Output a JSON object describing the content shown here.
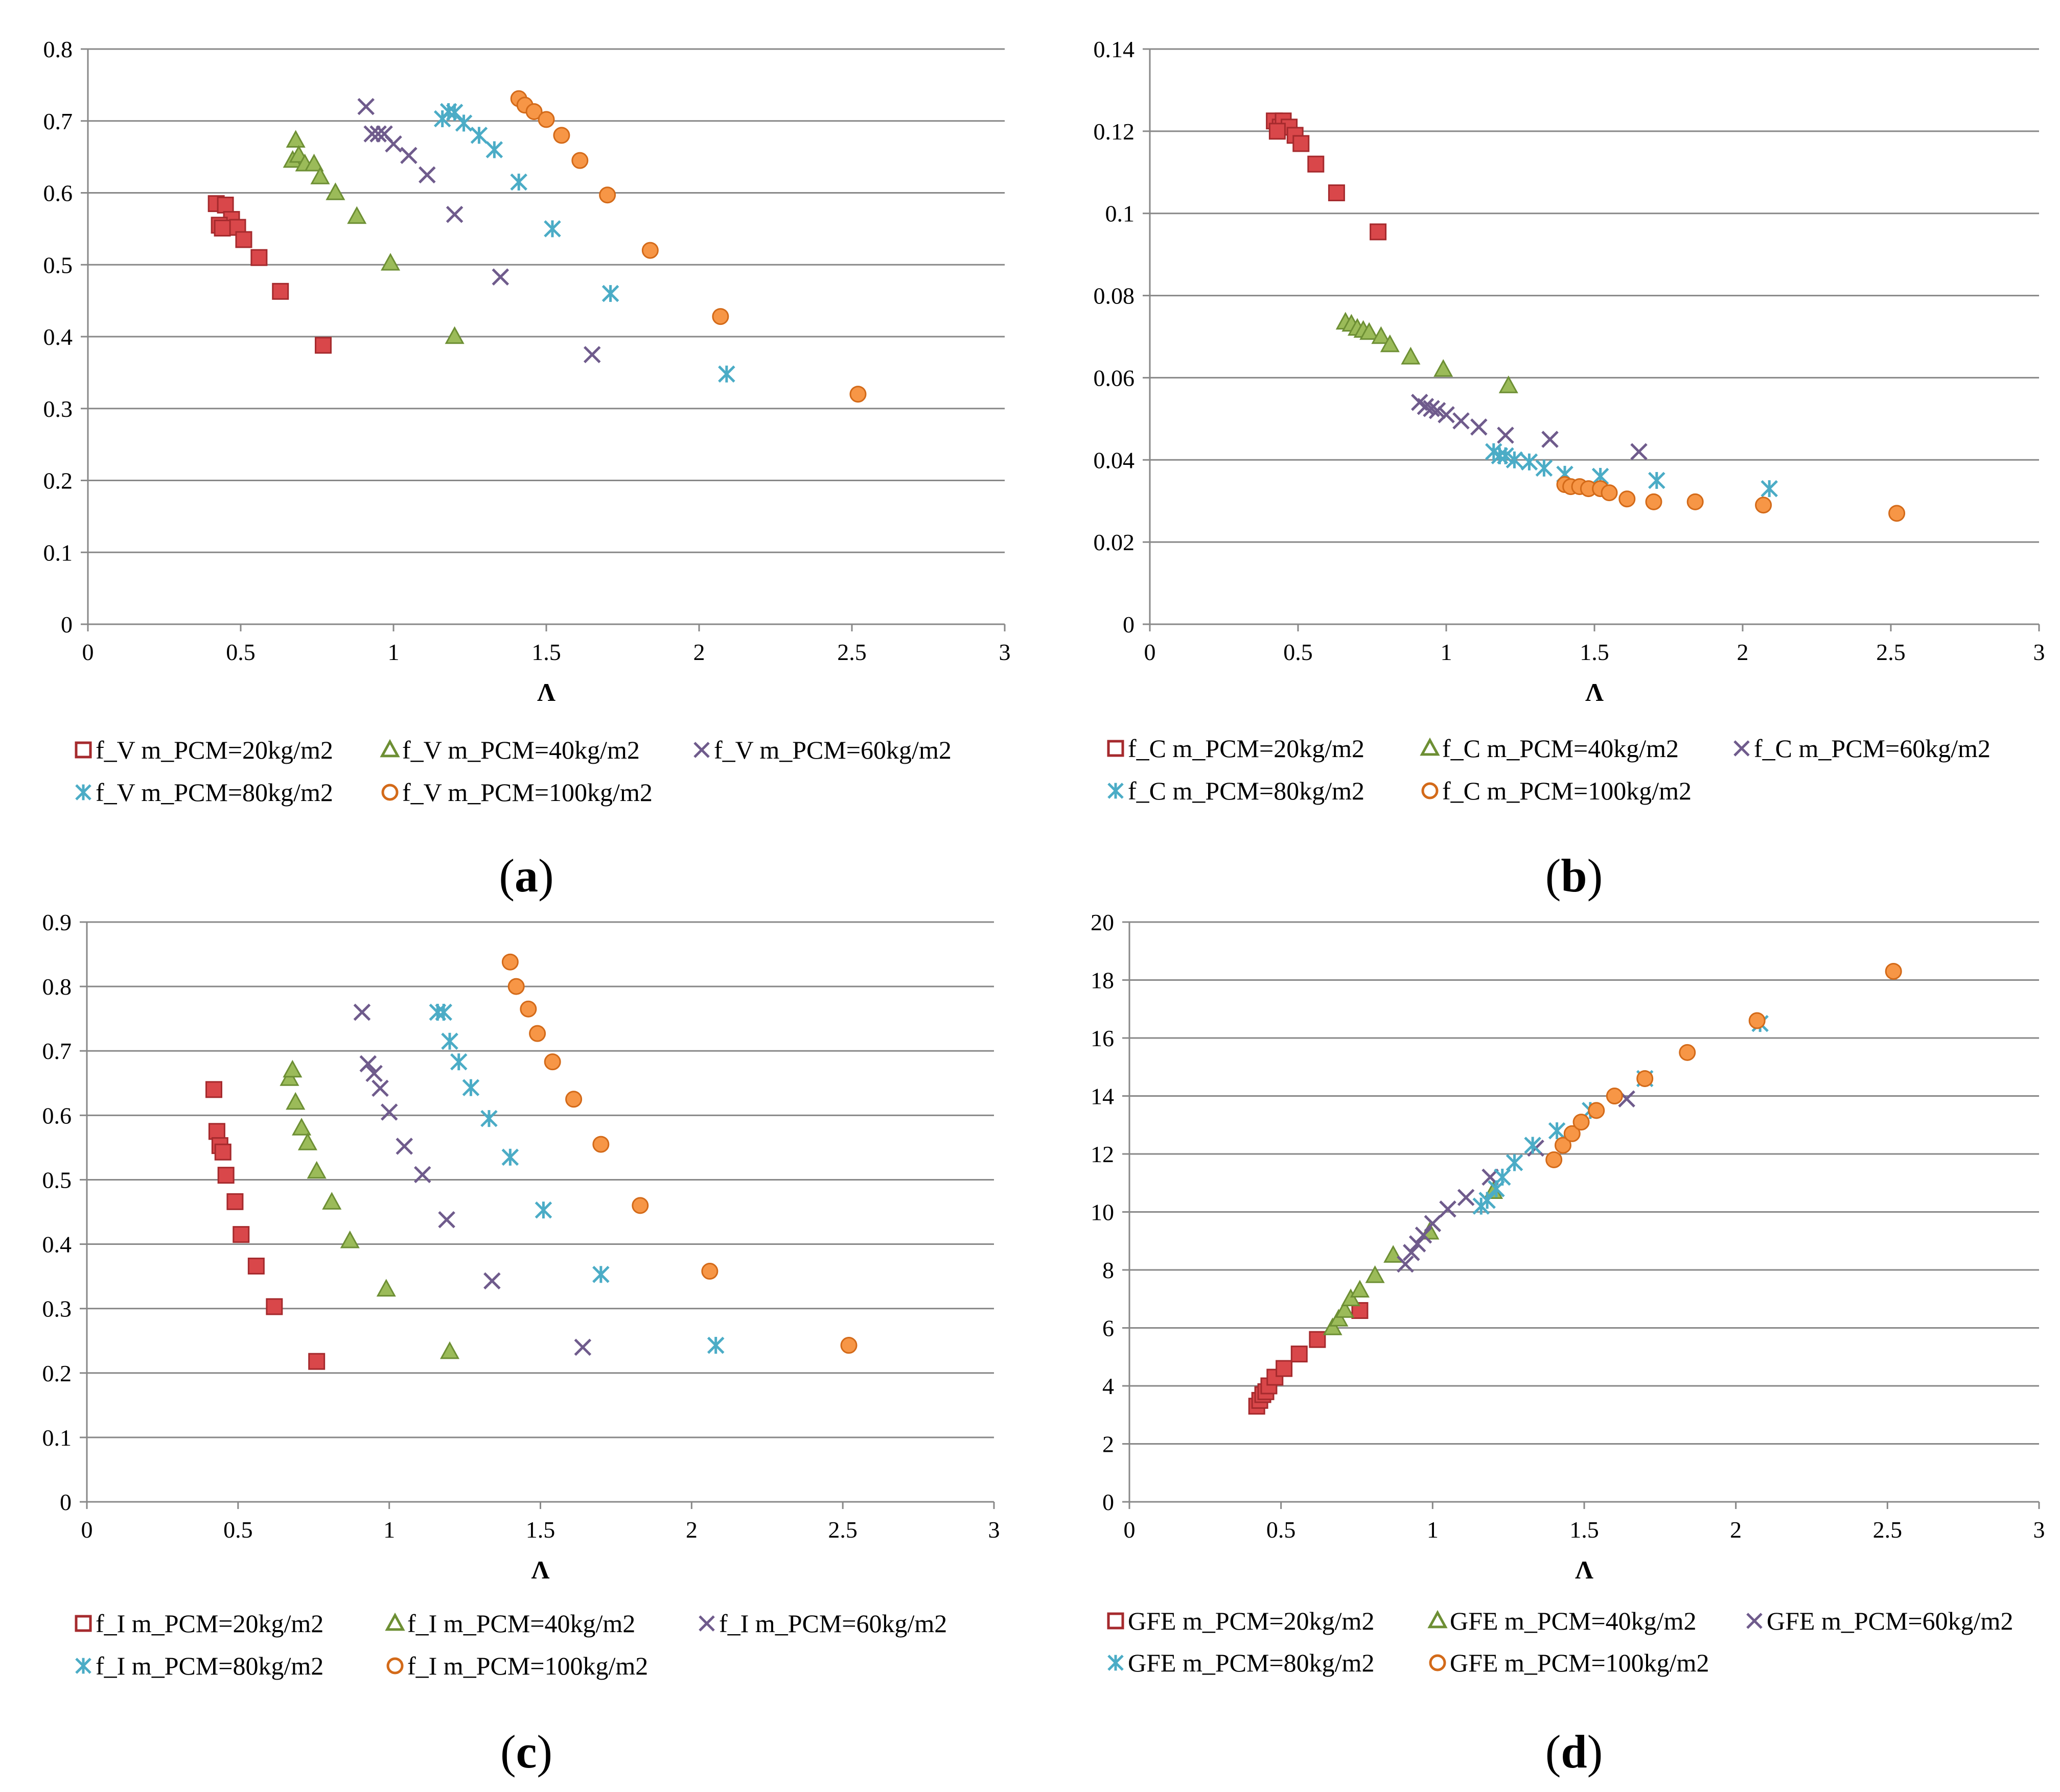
{
  "colors": {
    "red_fill": "#d9474a",
    "red_stroke": "#a52a2d",
    "green_fill": "#9bbb59",
    "green_stroke": "#6d8f34",
    "purple": "#6f5b8c",
    "teal": "#4bacc6",
    "orange_fill": "#f79646",
    "orange_stroke": "#d36a19",
    "grid": "#888888",
    "axis": "#888888"
  },
  "chart_data": [
    {
      "id": "a",
      "type": "scatter",
      "panel_label": {
        "open": "(",
        "letter": "a",
        "close": ")"
      },
      "xlabel": "Λ",
      "xlim": [
        0,
        3
      ],
      "ylim": [
        0,
        0.8
      ],
      "xticks": [
        "0",
        "0.5",
        "1",
        "1.5",
        "2",
        "2.5",
        "3"
      ],
      "yticks": [
        "0",
        "0.1",
        "0.2",
        "0.3",
        "0.4",
        "0.5",
        "0.6",
        "0.7",
        "0.8"
      ],
      "series": [
        {
          "name": "f_V m_PCM=20kg/m2",
          "marker": "square",
          "color": "red",
          "x": [
            0.42,
            0.45,
            0.47,
            0.49,
            0.51,
            0.56,
            0.63,
            0.77,
            0.43,
            0.44
          ],
          "y": [
            0.585,
            0.583,
            0.563,
            0.552,
            0.535,
            0.51,
            0.463,
            0.388,
            0.555,
            0.551
          ]
        },
        {
          "name": "f_V m_PCM=40kg/m2",
          "marker": "triangle",
          "color": "green",
          "x": [
            0.67,
            0.68,
            0.69,
            0.71,
            0.74,
            0.76,
            0.81,
            0.88,
            0.99,
            1.2
          ],
          "y": [
            0.645,
            0.673,
            0.652,
            0.64,
            0.64,
            0.622,
            0.6,
            0.567,
            0.502,
            0.4
          ]
        },
        {
          "name": "f_V m_PCM=60kg/m2",
          "marker": "x",
          "color": "purple",
          "x": [
            0.91,
            0.93,
            0.95,
            0.97,
            1.0,
            1.05,
            1.11,
            1.2,
            1.35,
            1.65
          ],
          "y": [
            0.72,
            0.682,
            0.682,
            0.682,
            0.668,
            0.652,
            0.625,
            0.57,
            0.483,
            0.375
          ]
        },
        {
          "name": "f_V m_PCM=80kg/m2",
          "marker": "asterisk",
          "color": "teal",
          "x": [
            1.16,
            1.18,
            1.2,
            1.23,
            1.28,
            1.33,
            1.41,
            1.52,
            1.71,
            2.09
          ],
          "y": [
            0.703,
            0.713,
            0.712,
            0.697,
            0.68,
            0.66,
            0.615,
            0.55,
            0.46,
            0.348
          ]
        },
        {
          "name": "f_V m_PCM=100kg/m2",
          "marker": "circle",
          "color": "orange",
          "x": [
            1.41,
            1.43,
            1.46,
            1.5,
            1.55,
            1.61,
            1.7,
            1.84,
            2.07,
            2.52
          ],
          "y": [
            0.731,
            0.722,
            0.713,
            0.702,
            0.68,
            0.645,
            0.597,
            0.52,
            0.428,
            0.32
          ]
        }
      ]
    },
    {
      "id": "b",
      "type": "scatter",
      "panel_label": {
        "open": "(",
        "letter": "b",
        "close": ")"
      },
      "xlabel": "Λ",
      "xlim": [
        0,
        3
      ],
      "ylim": [
        0,
        0.14
      ],
      "xticks": [
        "0",
        "0.5",
        "1",
        "1.5",
        "2",
        "2.5",
        "3"
      ],
      "yticks": [
        "0",
        "0.02",
        "0.04",
        "0.06",
        "0.08",
        "0.1",
        "0.12",
        "0.14"
      ],
      "series": [
        {
          "name": "f_C m_PCM=20kg/m2",
          "marker": "square",
          "color": "red",
          "x": [
            0.42,
            0.44,
            0.45,
            0.47,
            0.49,
            0.51,
            0.56,
            0.63,
            0.77,
            0.43
          ],
          "y": [
            0.1225,
            0.121,
            0.1225,
            0.121,
            0.119,
            0.117,
            0.112,
            0.105,
            0.0955,
            0.12
          ]
        },
        {
          "name": "f_C m_PCM=40kg/m2",
          "marker": "triangle",
          "color": "green",
          "x": [
            0.66,
            0.68,
            0.7,
            0.72,
            0.74,
            0.78,
            0.81,
            0.88,
            0.99,
            1.21
          ],
          "y": [
            0.0735,
            0.073,
            0.072,
            0.0715,
            0.071,
            0.07,
            0.068,
            0.065,
            0.062,
            0.058
          ]
        },
        {
          "name": "f_C m_PCM=60kg/m2",
          "marker": "x",
          "color": "purple",
          "x": [
            0.91,
            0.93,
            0.95,
            0.97,
            1.0,
            1.05,
            1.11,
            1.2,
            1.35,
            1.65
          ],
          "y": [
            0.054,
            0.053,
            0.0525,
            0.052,
            0.051,
            0.0495,
            0.048,
            0.046,
            0.045,
            0.042
          ]
        },
        {
          "name": "f_C m_PCM=80kg/m2",
          "marker": "asterisk",
          "color": "teal",
          "x": [
            1.16,
            1.18,
            1.2,
            1.23,
            1.28,
            1.33,
            1.4,
            1.52,
            1.71,
            2.09
          ],
          "y": [
            0.042,
            0.041,
            0.041,
            0.04,
            0.0395,
            0.038,
            0.0365,
            0.036,
            0.035,
            0.033
          ]
        },
        {
          "name": "f_C m_PCM=100kg/m2",
          "marker": "circle",
          "color": "orange",
          "x": [
            1.4,
            1.42,
            1.45,
            1.48,
            1.52,
            1.55,
            1.61,
            1.7,
            1.84,
            2.07,
            2.52
          ],
          "y": [
            0.034,
            0.0335,
            0.0335,
            0.033,
            0.033,
            0.032,
            0.0305,
            0.0298,
            0.0298,
            0.029,
            0.027
          ]
        }
      ]
    },
    {
      "id": "c",
      "type": "scatter",
      "panel_label": {
        "open": "(",
        "letter": "c",
        "close": ")"
      },
      "xlabel": "Λ",
      "xlim": [
        0,
        3
      ],
      "ylim": [
        0,
        0.9
      ],
      "xticks": [
        "0",
        "0.5",
        "1",
        "1.5",
        "2",
        "2.5",
        "3"
      ],
      "yticks": [
        "0",
        "0.1",
        "0.2",
        "0.3",
        "0.4",
        "0.5",
        "0.6",
        "0.7",
        "0.8",
        "0.9"
      ],
      "series": [
        {
          "name": "f_I m_PCM=20kg/m2",
          "marker": "square",
          "color": "red",
          "x": [
            0.42,
            0.43,
            0.44,
            0.45,
            0.46,
            0.49,
            0.51,
            0.56,
            0.62,
            0.76
          ],
          "y": [
            0.64,
            0.575,
            0.553,
            0.543,
            0.507,
            0.466,
            0.415,
            0.366,
            0.303,
            0.218
          ]
        },
        {
          "name": "f_I m_PCM=40kg/m2",
          "marker": "triangle",
          "color": "green",
          "x": [
            0.67,
            0.68,
            0.69,
            0.71,
            0.73,
            0.76,
            0.81,
            0.87,
            0.99,
            1.2
          ],
          "y": [
            0.657,
            0.67,
            0.62,
            0.58,
            0.557,
            0.513,
            0.465,
            0.405,
            0.33,
            0.233
          ]
        },
        {
          "name": "f_I m_PCM=60kg/m2",
          "marker": "x",
          "color": "purple",
          "x": [
            0.91,
            0.93,
            0.95,
            0.97,
            1.0,
            1.05,
            1.11,
            1.19,
            1.34,
            1.64
          ],
          "y": [
            0.76,
            0.68,
            0.665,
            0.642,
            0.605,
            0.552,
            0.508,
            0.438,
            0.343,
            0.24
          ]
        },
        {
          "name": "f_I m_PCM=80kg/m2",
          "marker": "asterisk",
          "color": "teal",
          "x": [
            1.16,
            1.18,
            1.2,
            1.23,
            1.27,
            1.33,
            1.4,
            1.51,
            1.7,
            2.08
          ],
          "y": [
            0.76,
            0.76,
            0.715,
            0.683,
            0.643,
            0.595,
            0.535,
            0.453,
            0.353,
            0.243
          ]
        },
        {
          "name": "f_I m_PCM=100kg/m2",
          "marker": "circle",
          "color": "orange",
          "x": [
            1.4,
            1.42,
            1.46,
            1.49,
            1.54,
            1.61,
            1.7,
            1.83,
            2.06,
            2.52
          ],
          "y": [
            0.838,
            0.8,
            0.765,
            0.727,
            0.683,
            0.625,
            0.555,
            0.46,
            0.358,
            0.243
          ]
        }
      ]
    },
    {
      "id": "d",
      "type": "scatter",
      "panel_label": {
        "open": "(",
        "letter": "d",
        "close": ")"
      },
      "xlabel": "Λ",
      "xlim": [
        0,
        3
      ],
      "ylim": [
        0,
        20
      ],
      "xticks": [
        "0",
        "0.5",
        "1",
        "1.5",
        "2",
        "2.5",
        "3"
      ],
      "yticks": [
        "0",
        "2",
        "4",
        "6",
        "8",
        "10",
        "12",
        "14",
        "16",
        "18",
        "20"
      ],
      "series": [
        {
          "name": "GFE m_PCM=20kg/m2",
          "marker": "square",
          "color": "red",
          "x": [
            0.42,
            0.43,
            0.44,
            0.45,
            0.46,
            0.48,
            0.51,
            0.56,
            0.62,
            0.76
          ],
          "y": [
            3.3,
            3.5,
            3.7,
            3.8,
            4.0,
            4.3,
            4.6,
            5.1,
            5.6,
            6.6
          ]
        },
        {
          "name": "GFE m_PCM=40kg/m2",
          "marker": "triangle",
          "color": "green",
          "x": [
            0.67,
            0.69,
            0.71,
            0.73,
            0.76,
            0.81,
            0.87,
            0.99,
            1.2
          ],
          "y": [
            6.0,
            6.3,
            6.6,
            7.0,
            7.3,
            7.8,
            8.5,
            9.3,
            10.7
          ]
        },
        {
          "name": "GFE m_PCM=60kg/m2",
          "marker": "x",
          "color": "purple",
          "x": [
            0.91,
            0.93,
            0.95,
            0.97,
            1.0,
            1.05,
            1.11,
            1.19,
            1.34,
            1.64
          ],
          "y": [
            8.2,
            8.6,
            8.9,
            9.2,
            9.6,
            10.1,
            10.5,
            11.2,
            12.2,
            13.9
          ]
        },
        {
          "name": "GFE m_PCM=80kg/m2",
          "marker": "asterisk",
          "color": "teal",
          "x": [
            1.16,
            1.18,
            1.21,
            1.23,
            1.27,
            1.33,
            1.41,
            1.52,
            1.7,
            2.08
          ],
          "y": [
            10.2,
            10.4,
            10.8,
            11.2,
            11.7,
            12.3,
            12.8,
            13.5,
            14.6,
            16.5
          ]
        },
        {
          "name": "GFE m_PCM=100kg/m2",
          "marker": "circle",
          "color": "orange",
          "x": [
            1.4,
            1.43,
            1.46,
            1.49,
            1.54,
            1.6,
            1.7,
            1.84,
            2.07,
            2.52
          ],
          "y": [
            11.8,
            12.3,
            12.7,
            13.1,
            13.5,
            14.0,
            14.6,
            15.5,
            16.6,
            18.3
          ]
        }
      ]
    }
  ]
}
